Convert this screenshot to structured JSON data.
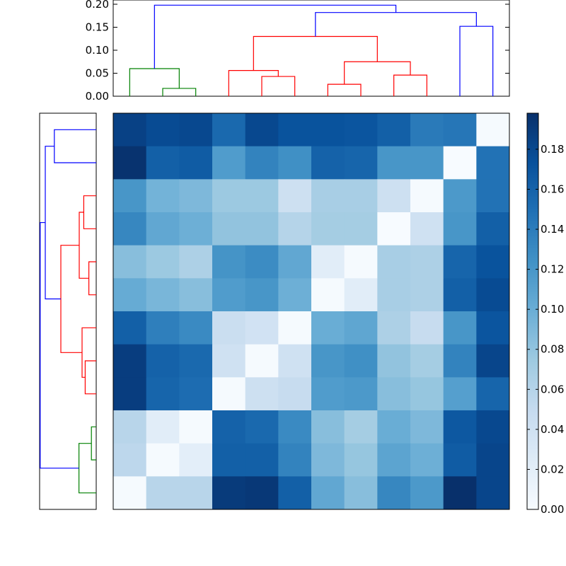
{
  "chart_data": [
    {
      "type": "dendrogram",
      "orientation": "top",
      "ylim": [
        0,
        0.205
      ],
      "yticks": [
        "0.00",
        "0.05",
        "0.10",
        "0.15",
        "0.20"
      ],
      "ytick_values": [
        0,
        0.05,
        0.1,
        0.15,
        0.2
      ],
      "colors": {
        "green": "#008000",
        "red": "#ff0000",
        "blue": "#0000ff"
      },
      "links": [
        {
          "a": 1,
          "b": 2,
          "h": 0.017,
          "color": "green"
        },
        {
          "a": 0,
          "b": 1.5,
          "h": 0.06,
          "color": "green"
        },
        {
          "a": 4,
          "b": 5,
          "h": 0.043,
          "color": "red"
        },
        {
          "a": 3,
          "b": 4.5,
          "h": 0.056,
          "color": "red"
        },
        {
          "a": 6,
          "b": 7,
          "h": 0.026,
          "color": "red"
        },
        {
          "a": 8,
          "b": 9,
          "h": 0.046,
          "color": "red"
        },
        {
          "a": 6.5,
          "b": 8.5,
          "h": 0.075,
          "color": "red"
        },
        {
          "a": 3.75,
          "b": 7.5,
          "h": 0.13,
          "color": "red"
        },
        {
          "a": 10,
          "b": 11,
          "h": 0.152,
          "color": "blue"
        },
        {
          "a": 5.625,
          "b": 10.5,
          "h": 0.182,
          "color": "blue"
        },
        {
          "a": 0.75,
          "b": 8.0625,
          "h": 0.198,
          "color": "blue"
        }
      ]
    },
    {
      "type": "dendrogram",
      "orientation": "left",
      "colors": {
        "green": "#008000",
        "red": "#ff0000",
        "blue": "#0000ff"
      },
      "links": [
        {
          "a": 0,
          "b": 1,
          "h": 0.148,
          "color": "blue"
        },
        {
          "a": 2,
          "b": 3,
          "h": 0.044,
          "color": "red"
        },
        {
          "a": 4,
          "b": 5,
          "h": 0.026,
          "color": "red"
        },
        {
          "a": 2.5,
          "b": 4.5,
          "h": 0.06,
          "color": "red"
        },
        {
          "a": 7,
          "b": 8,
          "h": 0.039,
          "color": "red"
        },
        {
          "a": 6,
          "b": 7.5,
          "h": 0.05,
          "color": "red"
        },
        {
          "a": 3.5,
          "b": 6.75,
          "h": 0.125,
          "color": "red"
        },
        {
          "a": 0.5,
          "b": 5.125,
          "h": 0.18,
          "color": "blue"
        },
        {
          "a": 9,
          "b": 10,
          "h": 0.017,
          "color": "green"
        },
        {
          "a": 9.5,
          "b": 11,
          "h": 0.061,
          "color": "green"
        },
        {
          "a": 2.8125,
          "b": 10.25,
          "h": 0.198,
          "color": "blue"
        }
      ]
    },
    {
      "type": "heatmap",
      "rows": 12,
      "cols": 12,
      "colormap": "Blues",
      "vmin": 0,
      "vmax": 0.198,
      "colorbar": {
        "ticks": [
          "0.00",
          "0.02",
          "0.04",
          "0.06",
          "0.08",
          "0.10",
          "0.12",
          "0.14",
          "0.16",
          "0.18"
        ],
        "tick_values": [
          0,
          0.02,
          0.04,
          0.06,
          0.08,
          0.1,
          0.12,
          0.14,
          0.16,
          0.18
        ]
      },
      "values": [
        [
          0.185,
          0.178,
          0.18,
          0.155,
          0.18,
          0.172,
          0.172,
          0.17,
          0.162,
          0.142,
          0.145,
          0.002
        ],
        [
          0.196,
          0.162,
          0.165,
          0.115,
          0.135,
          0.125,
          0.16,
          0.158,
          0.12,
          0.12,
          0.0,
          0.148
        ],
        [
          0.12,
          0.095,
          0.09,
          0.075,
          0.075,
          0.042,
          0.068,
          0.068,
          0.042,
          0.002,
          0.118,
          0.148
        ],
        [
          0.132,
          0.105,
          0.098,
          0.08,
          0.08,
          0.06,
          0.07,
          0.07,
          0.0,
          0.04,
          0.12,
          0.162
        ],
        [
          0.085,
          0.075,
          0.065,
          0.122,
          0.128,
          0.105,
          0.022,
          0.002,
          0.068,
          0.065,
          0.158,
          0.172
        ],
        [
          0.102,
          0.092,
          0.085,
          0.115,
          0.12,
          0.098,
          0.002,
          0.022,
          0.068,
          0.065,
          0.162,
          0.178
        ],
        [
          0.162,
          0.138,
          0.13,
          0.045,
          0.038,
          0.002,
          0.1,
          0.106,
          0.065,
          0.048,
          0.12,
          0.17
        ],
        [
          0.188,
          0.16,
          0.155,
          0.04,
          0.002,
          0.04,
          0.12,
          0.125,
          0.08,
          0.07,
          0.135,
          0.182
        ],
        [
          0.188,
          0.158,
          0.152,
          0.002,
          0.042,
          0.048,
          0.115,
          0.118,
          0.085,
          0.078,
          0.112,
          0.158
        ],
        [
          0.058,
          0.022,
          0.002,
          0.16,
          0.155,
          0.13,
          0.085,
          0.07,
          0.1,
          0.09,
          0.168,
          0.18
        ],
        [
          0.055,
          0.002,
          0.02,
          0.162,
          0.162,
          0.135,
          0.09,
          0.078,
          0.108,
          0.098,
          0.165,
          0.182
        ],
        [
          0.002,
          0.058,
          0.058,
          0.19,
          0.192,
          0.162,
          0.105,
          0.085,
          0.132,
          0.118,
          0.198,
          0.182
        ]
      ]
    }
  ]
}
